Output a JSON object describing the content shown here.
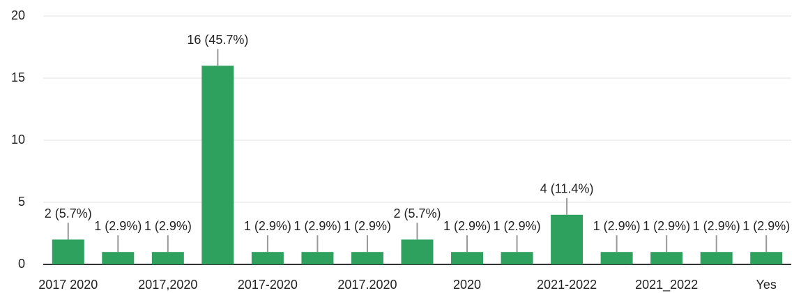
{
  "chart_data": {
    "type": "bar",
    "categories": [
      "2017 2020",
      null,
      "2017,2020",
      null,
      "2017-2020",
      null,
      "2017.2020",
      null,
      "2020",
      null,
      "2021-2022",
      null,
      "2021_2022",
      null,
      "Yes"
    ],
    "values": [
      2,
      1,
      1,
      16,
      1,
      1,
      1,
      2,
      1,
      1,
      4,
      1,
      1,
      1,
      1
    ],
    "value_labels": [
      "2 (5.7%)",
      "1 (2.9%)",
      "1 (2.9%)",
      "16 (45.7%)",
      "1 (2.9%)",
      "1 (2.9%)",
      "1 (2.9%)",
      "2 (5.7%)",
      "1 (2.9%)",
      "1 (2.9%)",
      "4 (11.4%)",
      "1 (2.9%)",
      "1 (2.9%)",
      "1 (2.9%)",
      "1 (2.9%)"
    ],
    "color": "#2ea15f",
    "ylim": [
      0,
      20
    ],
    "yticks": [
      0,
      5,
      10,
      15,
      20
    ],
    "grid": true
  }
}
